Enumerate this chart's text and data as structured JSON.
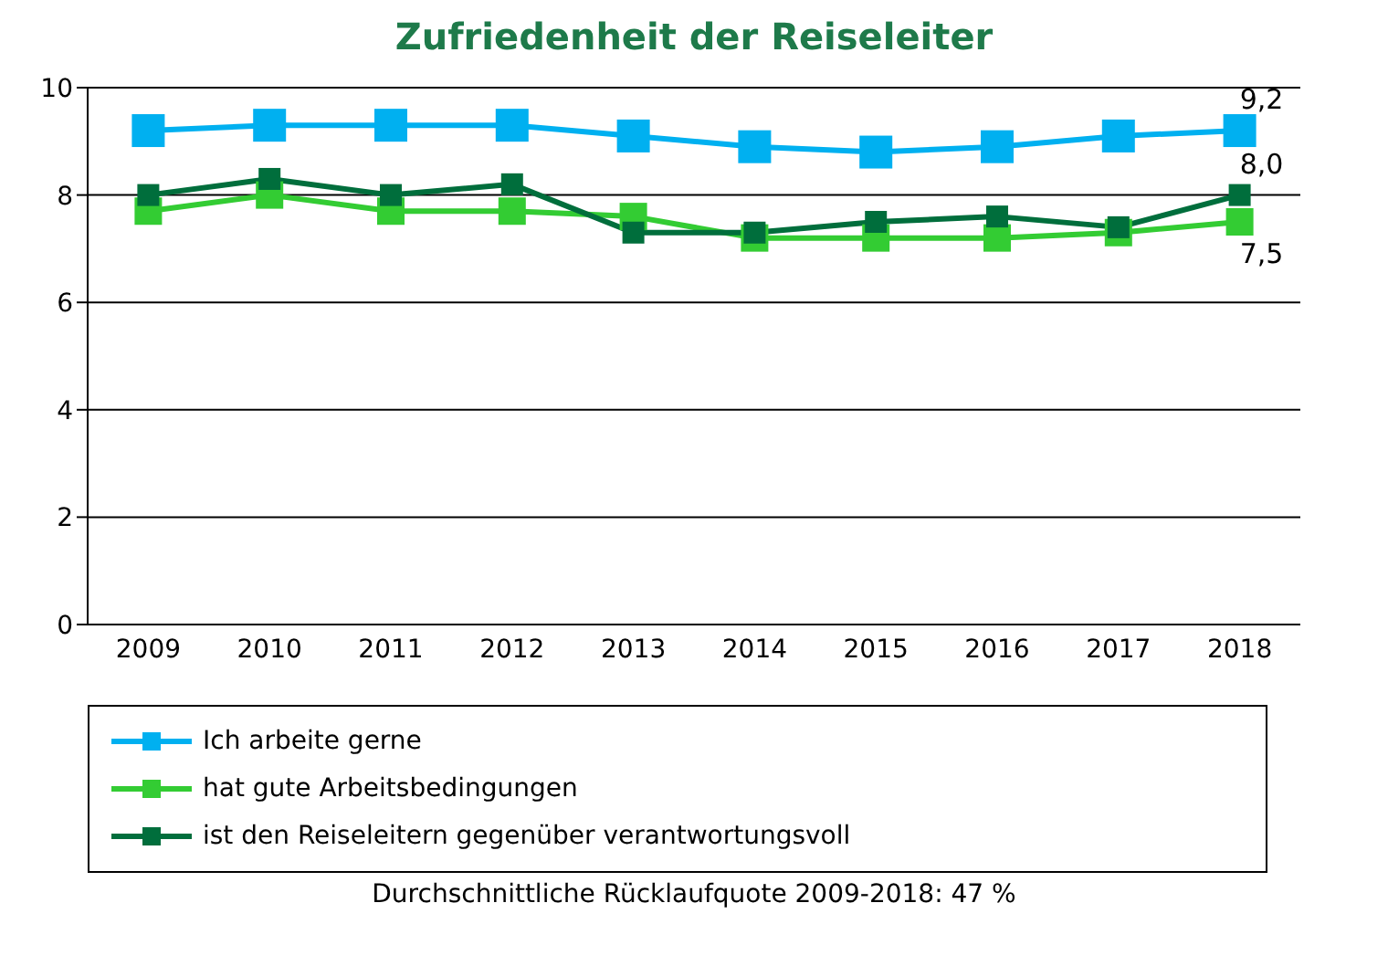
{
  "chart_data": {
    "type": "line",
    "title": "Zufriedenheit der Reiseleiter",
    "categories": [
      "2009",
      "2010",
      "2011",
      "2012",
      "2013",
      "2014",
      "2015",
      "2016",
      "2017",
      "2018"
    ],
    "series": [
      {
        "name": "Ich arbeite gerne",
        "color": "#00b0f0",
        "values": [
          9.2,
          9.3,
          9.3,
          9.3,
          9.1,
          8.9,
          8.8,
          8.9,
          9.1,
          9.2
        ],
        "value_labels": [
          null,
          null,
          null,
          null,
          null,
          null,
          null,
          null,
          null,
          "9,2"
        ]
      },
      {
        "name": "hat gute Arbeitsbedingungen",
        "color": "#33cc33",
        "values": [
          7.7,
          8.0,
          7.7,
          7.7,
          7.6,
          7.2,
          7.2,
          7.2,
          7.3,
          7.5
        ],
        "value_labels": [
          null,
          null,
          null,
          null,
          null,
          null,
          null,
          null,
          null,
          "7,5"
        ]
      },
      {
        "name": "ist den Reiseleitern gegenüber verantwortungsvoll",
        "color": "#006e3c",
        "values": [
          8.0,
          8.3,
          8.0,
          8.2,
          7.3,
          7.3,
          7.5,
          7.6,
          7.4,
          8.0
        ],
        "value_labels": [
          null,
          null,
          null,
          null,
          null,
          null,
          null,
          null,
          null,
          "8,0"
        ]
      }
    ],
    "ylim": [
      0,
      10
    ],
    "yticks": [
      0,
      2,
      4,
      6,
      8,
      10
    ],
    "grid": "y",
    "legend": "bottom",
    "marker": "square",
    "line_style": "solid",
    "annotations": [
      "Durchschnittliche Rücklaufquote 2009-2018: 47 %"
    ]
  }
}
